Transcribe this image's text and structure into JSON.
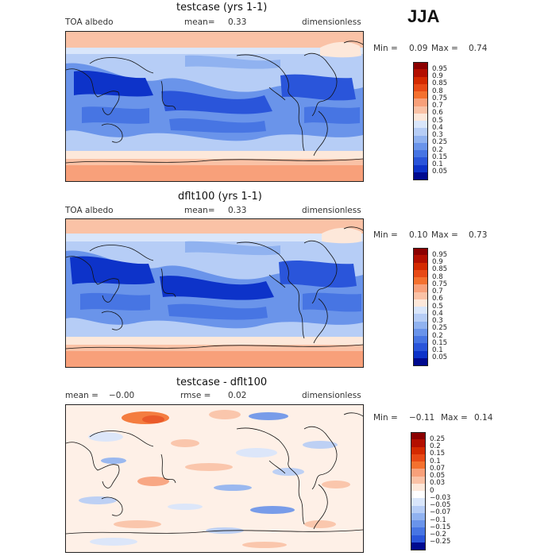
{
  "season": "JJA",
  "panels": [
    {
      "id": "p1",
      "title": "testcase (yrs 1-1)",
      "left_label": "TOA albedo",
      "mean_label": "mean=",
      "mean_value": "0.33",
      "right_label": "dimensionless",
      "min_label": "Min =",
      "min_value": "0.09",
      "max_label": "Max =",
      "max_value": "0.74",
      "kind": "absolute"
    },
    {
      "id": "p2",
      "title": "dflt100 (yrs 1-1)",
      "left_label": "TOA albedo",
      "mean_label": "mean=",
      "mean_value": "0.33",
      "right_label": "dimensionless",
      "min_label": "Min =",
      "min_value": "0.10",
      "max_label": "Max =",
      "max_value": "0.73",
      "kind": "absolute"
    },
    {
      "id": "p3",
      "title": "testcase - dflt100",
      "left_label": "mean =",
      "mean_label": "rmse =",
      "mean_value": "0.02",
      "left_value": "−0.00",
      "right_label": "dimensionless",
      "min_label": "Min =",
      "min_value": "−0.11",
      "max_label": "Max =",
      "max_value": "0.14",
      "kind": "difference"
    }
  ],
  "colorbars": {
    "absolute": {
      "labels": [
        "0.95",
        "0.9",
        "0.85",
        "0.8",
        "0.75",
        "0.7",
        "0.6",
        "0.5",
        "0.4",
        "0.3",
        "0.25",
        "0.2",
        "0.15",
        "0.1",
        "0.05"
      ],
      "colors": [
        "#8b0000",
        "#b30f00",
        "#d42a00",
        "#e84a16",
        "#f4712f",
        "#f8a07a",
        "#fac2a6",
        "#fde8da",
        "#d9e6fb",
        "#b6cdf6",
        "#90b2f0",
        "#6a94ea",
        "#4775e3",
        "#2a55da",
        "#0d33c9",
        "#000a8f"
      ]
    },
    "difference": {
      "labels": [
        "0.25",
        "0.2",
        "0.15",
        "0.1",
        "0.07",
        "0.05",
        "0.03",
        "0",
        "−0.03",
        "−0.05",
        "−0.07",
        "−0.1",
        "−0.15",
        "−0.2",
        "−0.25"
      ],
      "colors": [
        "#8b0000",
        "#b30f00",
        "#d42a00",
        "#e84a16",
        "#f4712f",
        "#f8a07a",
        "#fac2a6",
        "#fde8da",
        "#ffffff",
        "#d9e6fb",
        "#b6cdf6",
        "#90b2f0",
        "#6a94ea",
        "#4775e3",
        "#2a55da",
        "#000a8f"
      ]
    }
  },
  "chart_data": [
    {
      "type": "heatmap",
      "title": "testcase (yrs 1-1)",
      "variable": "TOA albedo",
      "units": "dimensionless",
      "mean": 0.33,
      "min": 0.09,
      "max": 0.74,
      "contour_levels": [
        0.05,
        0.1,
        0.15,
        0.2,
        0.25,
        0.3,
        0.4,
        0.5,
        0.6,
        0.7,
        0.75,
        0.8,
        0.85,
        0.9,
        0.95
      ]
    },
    {
      "type": "heatmap",
      "title": "dflt100 (yrs 1-1)",
      "variable": "TOA albedo",
      "units": "dimensionless",
      "mean": 0.33,
      "min": 0.1,
      "max": 0.73,
      "contour_levels": [
        0.05,
        0.1,
        0.15,
        0.2,
        0.25,
        0.3,
        0.4,
        0.5,
        0.6,
        0.7,
        0.75,
        0.8,
        0.85,
        0.9,
        0.95
      ]
    },
    {
      "type": "heatmap",
      "title": "testcase - dflt100",
      "units": "dimensionless",
      "mean": -0.0,
      "rmse": 0.02,
      "min": -0.11,
      "max": 0.14,
      "contour_levels": [
        -0.25,
        -0.2,
        -0.15,
        -0.1,
        -0.07,
        -0.05,
        -0.03,
        0,
        0.03,
        0.05,
        0.07,
        0.1,
        0.15,
        0.2,
        0.25
      ]
    }
  ]
}
